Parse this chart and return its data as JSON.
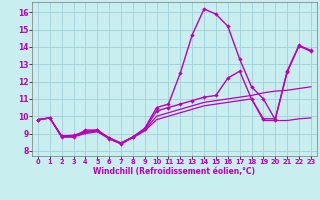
{
  "xlabel": "Windchill (Refroidissement éolien,°C)",
  "background_color": "#c8eef0",
  "line_color": "#bb00bb",
  "grid_color": "#a0d0d8",
  "xlim": [
    -0.5,
    23.5
  ],
  "ylim": [
    7.7,
    16.6
  ],
  "xticks": [
    0,
    1,
    2,
    3,
    4,
    5,
    6,
    7,
    8,
    9,
    10,
    11,
    12,
    13,
    14,
    15,
    16,
    17,
    18,
    19,
    20,
    21,
    22,
    23
  ],
  "yticks": [
    8,
    9,
    10,
    11,
    12,
    13,
    14,
    15,
    16
  ],
  "series": [
    {
      "x": [
        0,
        1,
        2,
        3,
        4,
        5,
        6,
        7,
        8,
        9,
        10,
        11,
        12,
        13,
        14,
        15,
        16,
        17,
        18,
        19,
        20,
        21,
        22,
        23
      ],
      "y": [
        9.8,
        9.9,
        8.8,
        8.8,
        9.2,
        9.2,
        8.7,
        8.4,
        8.8,
        9.3,
        10.5,
        10.7,
        12.5,
        14.7,
        16.2,
        15.9,
        15.2,
        13.3,
        11.7,
        11.0,
        9.8,
        12.6,
        14.1,
        13.8
      ],
      "marker": true,
      "lw": 1.0
    },
    {
      "x": [
        0,
        1,
        2,
        3,
        4,
        5,
        6,
        7,
        8,
        9,
        10,
        11,
        12,
        13,
        14,
        15,
        16,
        17,
        18,
        19,
        20,
        21,
        22,
        23
      ],
      "y": [
        9.8,
        9.9,
        8.85,
        8.9,
        9.1,
        9.2,
        8.75,
        8.45,
        8.8,
        9.25,
        10.3,
        10.5,
        10.7,
        10.9,
        11.1,
        11.2,
        12.2,
        12.6,
        11.0,
        9.85,
        9.85,
        12.55,
        14.05,
        13.75
      ],
      "marker": true,
      "lw": 1.0
    },
    {
      "x": [
        0,
        1,
        2,
        3,
        4,
        5,
        6,
        7,
        8,
        9,
        10,
        11,
        12,
        13,
        14,
        15,
        16,
        17,
        18,
        19,
        20,
        21,
        22,
        23
      ],
      "y": [
        9.8,
        9.9,
        8.85,
        8.85,
        9.05,
        9.15,
        8.75,
        8.45,
        8.8,
        9.2,
        10.0,
        10.2,
        10.4,
        10.6,
        10.8,
        10.9,
        11.0,
        11.1,
        11.2,
        11.35,
        11.45,
        11.5,
        11.6,
        11.7
      ],
      "marker": false,
      "lw": 0.9
    },
    {
      "x": [
        0,
        1,
        2,
        3,
        4,
        5,
        6,
        7,
        8,
        9,
        10,
        11,
        12,
        13,
        14,
        15,
        16,
        17,
        18,
        19,
        20,
        21,
        22,
        23
      ],
      "y": [
        9.8,
        9.9,
        8.8,
        8.8,
        9.0,
        9.1,
        8.7,
        8.4,
        8.75,
        9.15,
        9.8,
        10.0,
        10.2,
        10.4,
        10.6,
        10.7,
        10.8,
        10.9,
        11.0,
        9.75,
        9.75,
        9.75,
        9.85,
        9.9
      ],
      "marker": false,
      "lw": 0.9
    }
  ]
}
